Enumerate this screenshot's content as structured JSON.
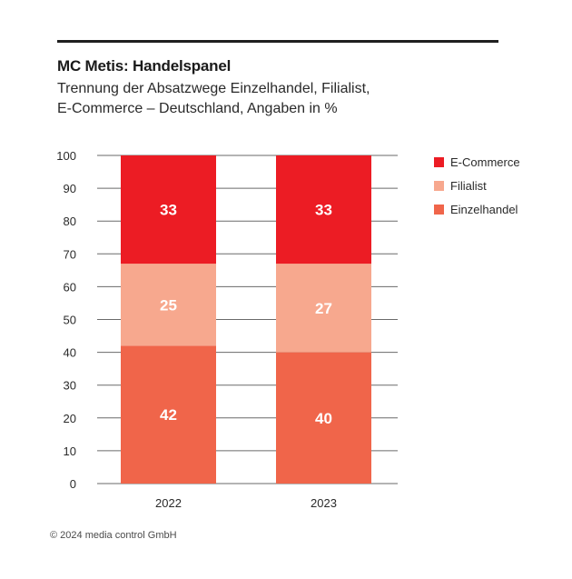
{
  "header": {
    "title": "MC Metis: Handelspanel",
    "subtitle_line1": "Trennung der Absatzwege Einzelhandel, Filialist,",
    "subtitle_line2": "E-Commerce – Deutschland, Angaben in %"
  },
  "footer": {
    "copyright": "© 2024 media control GmbH"
  },
  "chart_data": {
    "type": "bar",
    "stacked": true,
    "title": "MC Metis: Handelspanel",
    "subtitle": "Trennung der Absatzwege Einzelhandel, Filialist, E-Commerce – Deutschland, Angaben in %",
    "xlabel": "",
    "ylabel": "",
    "categories": [
      "2022",
      "2023"
    ],
    "ylim": [
      0,
      100
    ],
    "yticks": [
      0,
      10,
      20,
      30,
      40,
      50,
      60,
      70,
      80,
      90,
      100
    ],
    "grid": true,
    "legend_position": "right",
    "series": [
      {
        "name": "Einzelhandel",
        "values": [
          42,
          40
        ],
        "color": "#f0654a"
      },
      {
        "name": "Filialist",
        "values": [
          25,
          27
        ],
        "color": "#f7a88e"
      },
      {
        "name": "E-Commerce",
        "values": [
          33,
          33
        ],
        "color": "#ec1c24"
      }
    ],
    "legend_order": [
      "E-Commerce",
      "Filialist",
      "Einzelhandel"
    ]
  }
}
